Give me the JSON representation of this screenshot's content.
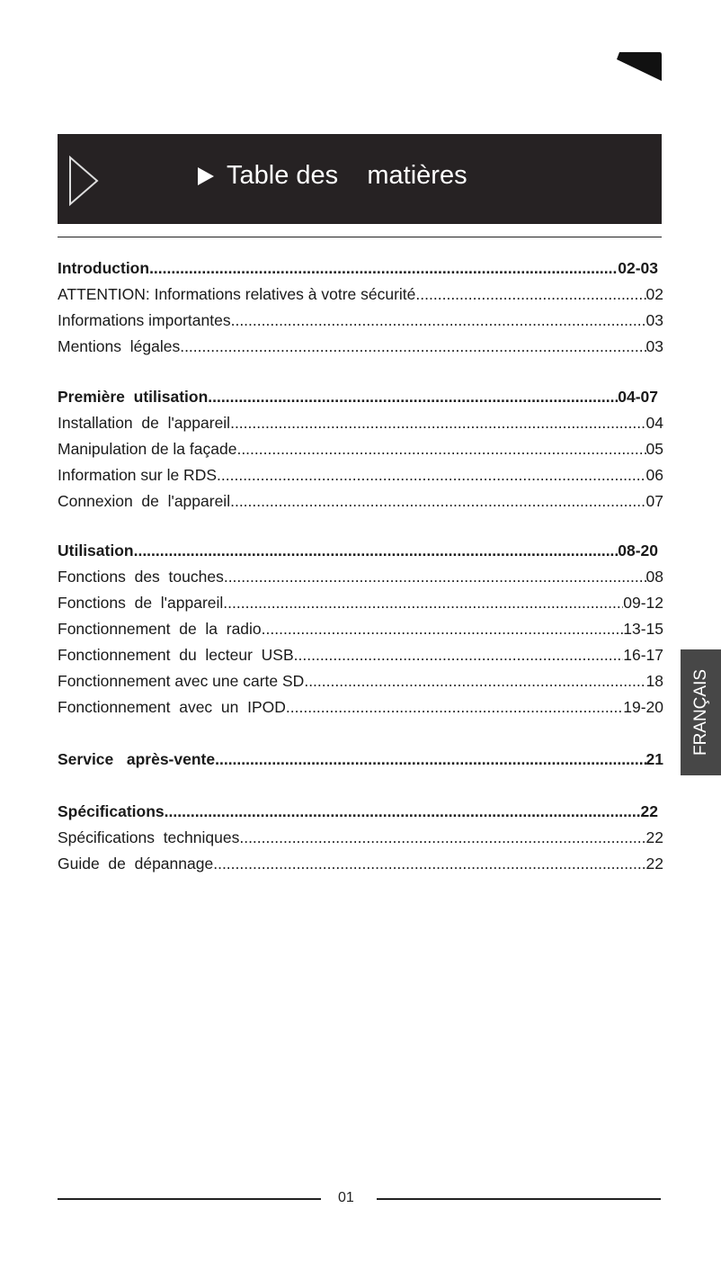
{
  "header": {
    "title": "Table des    matières"
  },
  "side_tab": {
    "label": "FRANÇAIS"
  },
  "sections": [
    {
      "title": "Introduction",
      "pages": "02-03",
      "items": [
        {
          "label": "ATTENTION: Informations relatives à votre sécurité",
          "page": "02"
        },
        {
          "label": "Informations importantes",
          "page": "03"
        },
        {
          "label": "Mentions  légales",
          "page": "03"
        }
      ]
    },
    {
      "title": "Première  utilisation",
      "pages": "04-07",
      "items": [
        {
          "label": "Installation  de  l'appareil",
          "page": "04"
        },
        {
          "label": "Manipulation de la façade",
          "page": "05"
        },
        {
          "label": "Information sur le RDS",
          "page": "06"
        },
        {
          "label": "Connexion  de  l'appareil",
          "page": "07"
        }
      ]
    },
    {
      "title": "Utilisation",
      "pages": "08-20",
      "items": [
        {
          "label": "Fonctions  des  touches",
          "page": "08"
        },
        {
          "label": "Fonctions  de  l'appareil",
          "page": "09-12"
        },
        {
          "label": "Fonctionnement  de  la  radio",
          "page": "13-15"
        },
        {
          "label": "Fonctionnement  du  lecteur  USB",
          "page": "16-17"
        },
        {
          "label": "Fonctionnement avec une carte SD",
          "page": "18"
        },
        {
          "label": "Fonctionnement  avec  un  IPOD",
          "page": "19-20"
        }
      ]
    },
    {
      "title": "Service   après-vente",
      "pages": "21",
      "items": []
    },
    {
      "title": "Spécifications",
      "pages": "22",
      "items": [
        {
          "label": "Spécifications  techniques",
          "page": "22"
        },
        {
          "label": "Guide  de  dépannage",
          "page": "22"
        }
      ]
    }
  ],
  "footer": {
    "page_number": "01"
  }
}
